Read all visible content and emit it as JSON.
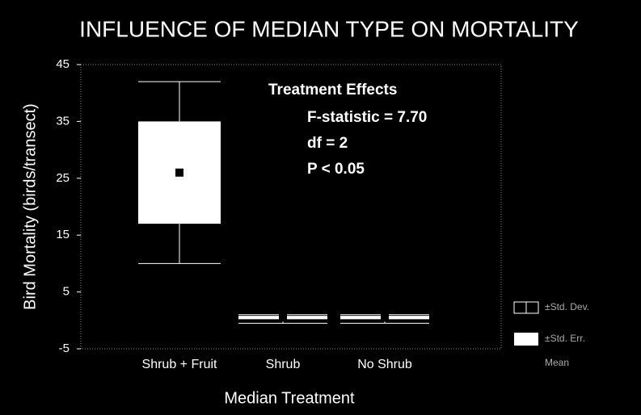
{
  "chart_data": {
    "type": "box",
    "title": "INFLUENCE OF MEDIAN TYPE ON MORTALITY",
    "y_label": "Bird Mortality (birds/transect)",
    "x_label": "Median Treatment",
    "categories": [
      "Shrub + Fruit",
      "Shrub",
      "No Shrub"
    ],
    "mean": [
      26,
      0.5,
      0.5
    ],
    "se_low": [
      17,
      0.2,
      0.2
    ],
    "se_high": [
      35,
      0.8,
      0.8
    ],
    "sd_low": [
      10,
      -0.5,
      -0.5
    ],
    "sd_high": [
      42,
      1,
      1
    ],
    "color": "#ffffff",
    "ylim": [
      -5,
      45
    ],
    "yticks": [
      -5,
      5,
      15,
      25,
      35,
      45
    ],
    "annotations": [
      "Treatment Effects",
      "F-statistic = 7.70",
      "df = 2",
      "P < 0.05"
    ],
    "legend": [
      "±Std. Dev.",
      "±Std. Err.",
      "Mean"
    ]
  }
}
